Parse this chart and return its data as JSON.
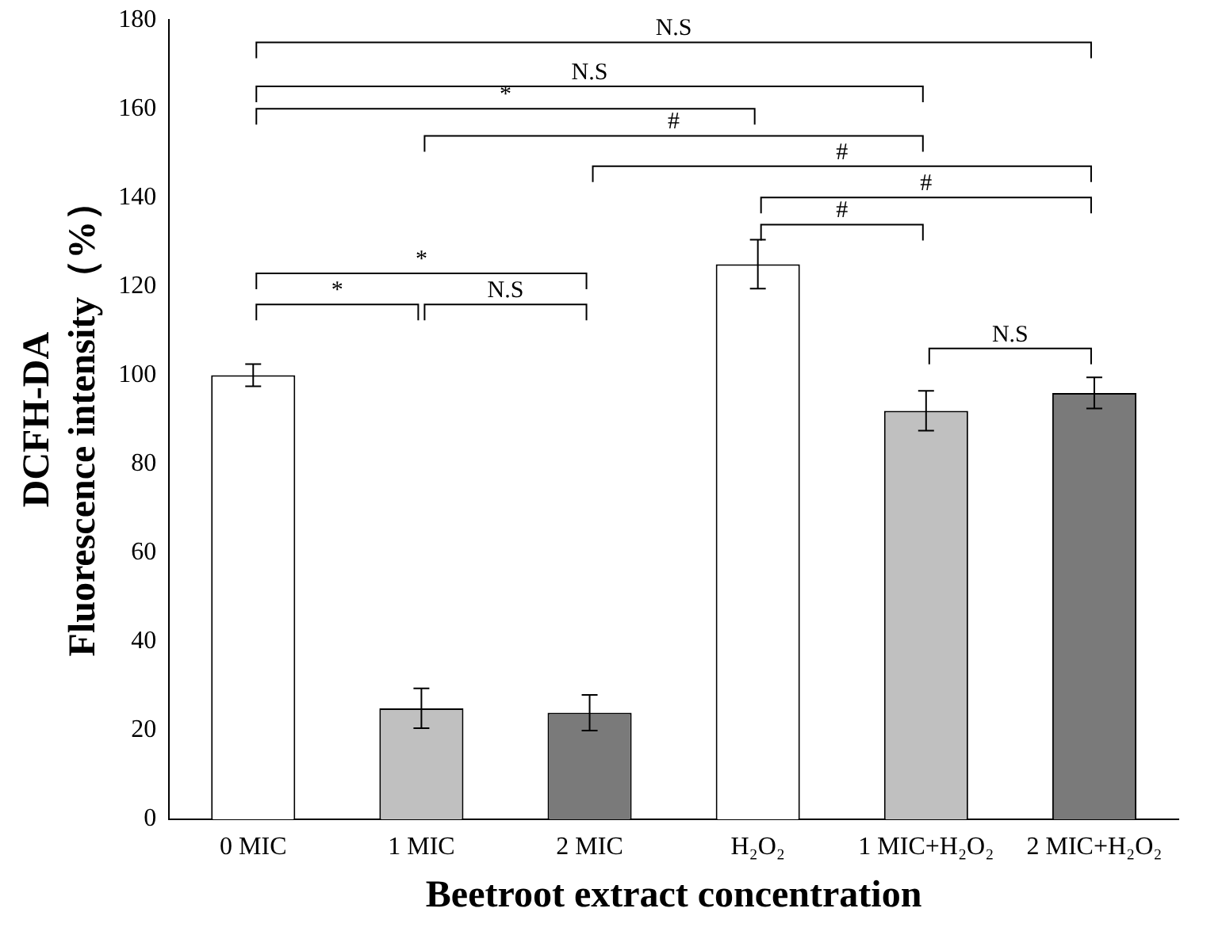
{
  "chart_data": {
    "type": "bar",
    "xlabel": "Beetroot extract concentration",
    "ylabel": "DCFH-DA\nFluorescence intensity（%）",
    "categories": [
      "0 MIC",
      "1 MIC",
      "2 MIC",
      "H₂O₂",
      "1 MIC+H₂O₂",
      "2 MIC+H₂O₂"
    ],
    "values": [
      100,
      25,
      24,
      125,
      92,
      96
    ],
    "colors": [
      "#ffffff",
      "#c0c0c0",
      "#7a7a7a",
      "#ffffff",
      "#c0c0c0",
      "#7a7a7a"
    ],
    "errors": [
      2.5,
      4.5,
      4,
      5.5,
      4.5,
      3.5
    ],
    "ylim": [
      0,
      180
    ],
    "yticks": [
      0,
      20,
      40,
      60,
      80,
      100,
      120,
      140,
      160,
      180
    ],
    "grid": false,
    "legend": false,
    "annotations": [
      "N.S",
      "N.S",
      "*",
      "#",
      "#",
      "#",
      "#",
      "*",
      "*",
      "N.S",
      "N.S"
    ]
  }
}
